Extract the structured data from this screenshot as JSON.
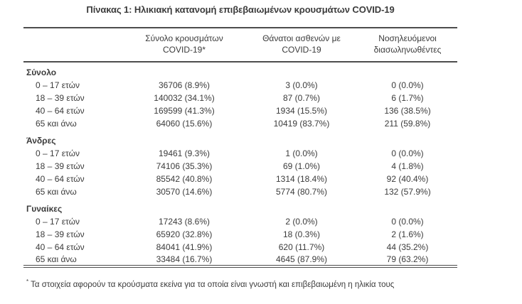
{
  "page": {
    "title": "Πίνακας 1: Ηλικιακή κατανομή επιβεβαιωμένων κρουσμάτων COVID-19"
  },
  "table": {
    "header": {
      "col_age": {
        "line1": "",
        "line2": ""
      },
      "col_cases": {
        "line1": "Σύνολο κρουσμάτων",
        "line2": "COVID-19*"
      },
      "col_deaths": {
        "line1": "Θάνατοι ασθενών με",
        "line2": "COVID-19"
      },
      "col_intubated": {
        "line1": "Νοσηλευόμενοι",
        "line2": "διασωληνωθέντες"
      }
    },
    "sections": [
      {
        "header": "Σύνολο",
        "rows": [
          {
            "age": "0 – 17 ετών",
            "cases": "36706 (8.9%)",
            "deaths": "3 (0.0%)",
            "intubated": "0 (0.0%)"
          },
          {
            "age": "18 – 39 ετών",
            "cases": "140032 (34.1%)",
            "deaths": "87 (0.7%)",
            "intubated": "6 (1.7%)"
          },
          {
            "age": "40 – 64 ετών",
            "cases": "169599 (41.3%)",
            "deaths": "1934 (15.5%)",
            "intubated": "136 (38.5%)"
          },
          {
            "age": "65 και άνω",
            "cases": "64060 (15.6%)",
            "deaths": "10419 (83.7%)",
            "intubated": "211 (59.8%)"
          }
        ]
      },
      {
        "header": "Άνδρες",
        "rows": [
          {
            "age": "0 – 17 ετών",
            "cases": "19461 (9.3%)",
            "deaths": "1 (0.0%)",
            "intubated": "0 (0.0%)"
          },
          {
            "age": "18 – 39 ετών",
            "cases": "74106 (35.3%)",
            "deaths": "69 (1.0%)",
            "intubated": "4 (1.8%)"
          },
          {
            "age": "40 – 64 ετών",
            "cases": "85542 (40.8%)",
            "deaths": "1314 (18.4%)",
            "intubated": "92 (40.4%)"
          },
          {
            "age": "65 και άνω",
            "cases": "30570 (14.6%)",
            "deaths": "5774 (80.7%)",
            "intubated": "132 (57.9%)"
          }
        ]
      },
      {
        "header": "Γυναίκες",
        "rows": [
          {
            "age": "0 – 17 ετών",
            "cases": "17243 (8.6%)",
            "deaths": "2 (0.0%)",
            "intubated": "0 (0.0%)"
          },
          {
            "age": "18 – 39 ετών",
            "cases": "65920 (32.8%)",
            "deaths": "18 (0.3%)",
            "intubated": "2 (1.6%)"
          },
          {
            "age": "40 – 64 ετών",
            "cases": "84041 (41.9%)",
            "deaths": "620 (11.7%)",
            "intubated": "44 (35.2%)"
          },
          {
            "age": "65 και άνω",
            "cases": "33484 (16.7%)",
            "deaths": "4645 (87.9%)",
            "intubated": "79 (63.2%)"
          }
        ]
      }
    ]
  },
  "footnote": {
    "marker": "*",
    "text": "Τα στοιχεία αφορούν τα κρούσματα εκείνα για τα οποία είναι γνωστή και επιβεβαιωμένη η ηλικία τους"
  },
  "colors": {
    "text": "#3b3b3b",
    "border": "#4d4d4d",
    "background": "#ffffff"
  }
}
